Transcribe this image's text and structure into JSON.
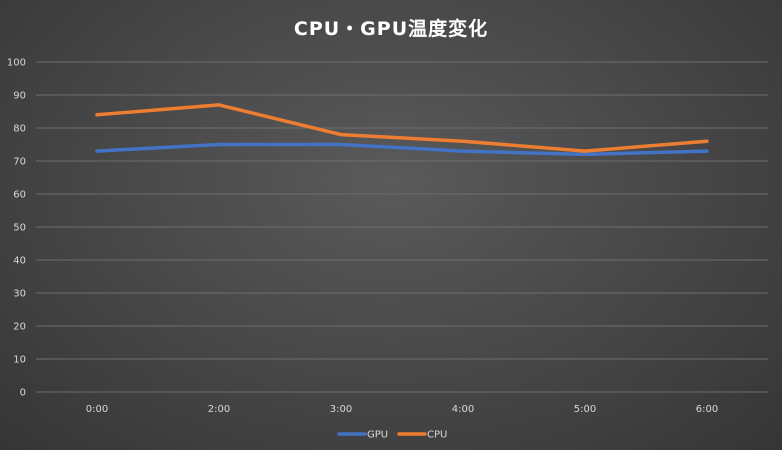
{
  "chart_data": {
    "type": "line",
    "title": "CPU・GPU温度変化",
    "xlabel": "",
    "ylabel": "",
    "categories": [
      "0:00",
      "2:00",
      "3:00",
      "4:00",
      "5:00",
      "6:00"
    ],
    "series": [
      {
        "name": "GPU",
        "values": [
          73,
          75,
          75,
          73,
          72,
          73
        ],
        "color": "#4472c4"
      },
      {
        "name": "CPU",
        "values": [
          84,
          87,
          78,
          76,
          73,
          76
        ],
        "color": "#ed7d31"
      }
    ],
    "ylim": [
      0,
      100
    ],
    "y_ticks": [
      "0",
      "10",
      "20",
      "30",
      "40",
      "50",
      "60",
      "70",
      "80",
      "90",
      "100"
    ],
    "grid": true,
    "legend": "bottom"
  },
  "colors": {
    "gridline": "#6e6e6e",
    "text": "#d9d9d9"
  }
}
